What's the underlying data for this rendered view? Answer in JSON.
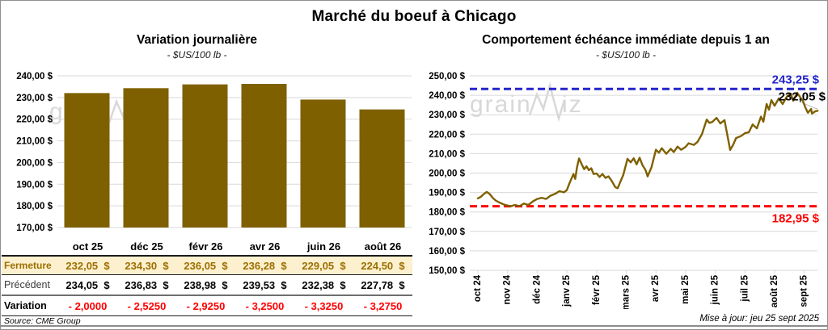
{
  "page": {
    "title": "Marché du boeuf à Chicago",
    "source": "Source: CME Group",
    "updated": "Mise à jour: jeu 25 sept 2025",
    "watermark": {
      "part1": "grain",
      "part2": "iz"
    }
  },
  "colors": {
    "series_gold": "#7F6000",
    "grid": "#D9D9D9",
    "high_blue": "#2424CC",
    "low_red": "#FF0000",
    "last_black": "#000000",
    "fermeture_text": "#9C6F00",
    "fermeture_bg": "#FCF0CE",
    "variation_red": "#FF0000",
    "watermark_gray": "#D8D8D8"
  },
  "chart_data": [
    {
      "type": "bar",
      "title": "Variation journalière",
      "subtitle": "- $US/100 lb -",
      "categories": [
        "oct 25",
        "déc 25",
        "févr 26",
        "avr 26",
        "juin 26",
        "août 26"
      ],
      "values": [
        232.05,
        234.3,
        236.05,
        236.28,
        229.05,
        224.5
      ],
      "ylim": [
        170,
        240
      ],
      "ytick_step": 10,
      "ytick_labels": [
        "240,00 $",
        "230,00 $",
        "220,00 $",
        "210,00 $",
        "200,00 $",
        "190,00 $",
        "180,00 $",
        "170,00 $"
      ],
      "grid": true,
      "table": {
        "rows": [
          {
            "key": "fermeture",
            "label": "Fermeture",
            "values": [
              "232,05  $",
              "234,30  $",
              "236,05  $",
              "236,28  $",
              "229,05  $",
              "224,50  $"
            ]
          },
          {
            "key": "precedent",
            "label": "Précédent",
            "values": [
              "234,05  $",
              "236,83  $",
              "238,98  $",
              "239,53  $",
              "232,38  $",
              "227,78  $"
            ]
          },
          {
            "key": "variation",
            "label": "Variation",
            "values": [
              "- 2,0000",
              "- 2,5250",
              "- 2,9250",
              "- 3,2500",
              "- 3,3250",
              "- 3,2750"
            ]
          }
        ]
      }
    },
    {
      "type": "line",
      "title": "Comportement échéance immédiate depuis 1 an",
      "subtitle": "- $US/100 lb -",
      "x_tick_labels": [
        "oct 24",
        "nov 24",
        "déc 24",
        "janv 25",
        "févr 25",
        "mars 25",
        "avr 25",
        "mai 25",
        "juin 25",
        "juil 25",
        "août 25",
        "sept 25"
      ],
      "ylim": [
        150,
        250
      ],
      "ytick_step": 10,
      "ytick_labels": [
        "250,00 $",
        "240,00 $",
        "230,00 $",
        "220,00 $",
        "210,00 $",
        "200,00 $",
        "190,00 $",
        "180,00 $",
        "170,00 $",
        "160,00 $",
        "150,00 $"
      ],
      "grid": true,
      "annotations": {
        "high": {
          "value": 243.25,
          "label": "243,25 $"
        },
        "low": {
          "value": 182.95,
          "label": "182,95 $"
        },
        "last": {
          "value": 232.05,
          "label": "232,05 $"
        }
      },
      "series": [
        {
          "name": "échéance immédiate",
          "points": [
            [
              0.0,
              187.0
            ],
            [
              0.1,
              187.8
            ],
            [
              0.2,
              189.2
            ],
            [
              0.3,
              190.3
            ],
            [
              0.4,
              189.2
            ],
            [
              0.5,
              187.3
            ],
            [
              0.6,
              185.9
            ],
            [
              0.75,
              184.7
            ],
            [
              0.9,
              183.7
            ],
            [
              1.0,
              183.3
            ],
            [
              1.1,
              182.9
            ],
            [
              1.25,
              183.6
            ],
            [
              1.4,
              183.0
            ],
            [
              1.55,
              184.3
            ],
            [
              1.7,
              183.6
            ],
            [
              1.85,
              185.4
            ],
            [
              2.0,
              186.7
            ],
            [
              2.15,
              187.3
            ],
            [
              2.3,
              186.7
            ],
            [
              2.45,
              188.4
            ],
            [
              2.6,
              189.3
            ],
            [
              2.75,
              190.7
            ],
            [
              2.9,
              190.1
            ],
            [
              3.0,
              191.3
            ],
            [
              3.08,
              194.5
            ],
            [
              3.15,
              197.0
            ],
            [
              3.22,
              199.5
            ],
            [
              3.28,
              197.0
            ],
            [
              3.34,
              203.0
            ],
            [
              3.41,
              207.5
            ],
            [
              3.5,
              204.5
            ],
            [
              3.58,
              202.0
            ],
            [
              3.66,
              203.5
            ],
            [
              3.74,
              201.5
            ],
            [
              3.82,
              202.5
            ],
            [
              3.9,
              199.5
            ],
            [
              4.0,
              199.8
            ],
            [
              4.1,
              198.0
            ],
            [
              4.2,
              199.5
            ],
            [
              4.3,
              197.5
            ],
            [
              4.4,
              198.3
            ],
            [
              4.5,
              196.2
            ],
            [
              4.63,
              192.8
            ],
            [
              4.71,
              192.2
            ],
            [
              4.8,
              195.5
            ],
            [
              4.9,
              199.0
            ],
            [
              5.04,
              207.3
            ],
            [
              5.15,
              205.5
            ],
            [
              5.25,
              207.6
            ],
            [
              5.35,
              204.5
            ],
            [
              5.45,
              207.9
            ],
            [
              5.55,
              204.0
            ],
            [
              5.65,
              201.5
            ],
            [
              5.72,
              198.3
            ],
            [
              5.85,
              203.0
            ],
            [
              6.0,
              212.0
            ],
            [
              6.1,
              210.5
            ],
            [
              6.2,
              212.8
            ],
            [
              6.35,
              209.9
            ],
            [
              6.5,
              212.5
            ],
            [
              6.6,
              210.8
            ],
            [
              6.73,
              213.6
            ],
            [
              6.85,
              212.0
            ],
            [
              7.0,
              213.5
            ],
            [
              7.1,
              215.3
            ],
            [
              7.28,
              214.5
            ],
            [
              7.4,
              216.0
            ],
            [
              7.55,
              220.0
            ],
            [
              7.71,
              227.5
            ],
            [
              7.8,
              225.8
            ],
            [
              7.9,
              226.3
            ],
            [
              8.04,
              228.4
            ],
            [
              8.17,
              225.5
            ],
            [
              8.31,
              227.2
            ],
            [
              8.4,
              220.0
            ],
            [
              8.5,
              211.9
            ],
            [
              8.6,
              214.5
            ],
            [
              8.7,
              218.0
            ],
            [
              8.86,
              219.0
            ],
            [
              9.0,
              220.5
            ],
            [
              9.13,
              221.0
            ],
            [
              9.26,
              225.0
            ],
            [
              9.4,
              223.0
            ],
            [
              9.54,
              229.0
            ],
            [
              9.62,
              226.4
            ],
            [
              9.73,
              235.5
            ],
            [
              9.81,
              232.6
            ],
            [
              9.89,
              237.5
            ],
            [
              10.0,
              234.6
            ],
            [
              10.14,
              238.4
            ],
            [
              10.27,
              235.5
            ],
            [
              10.41,
              239.2
            ],
            [
              10.54,
              240.9
            ],
            [
              10.63,
              237.2
            ],
            [
              10.76,
              241.3
            ],
            [
              10.85,
              239.2
            ],
            [
              10.95,
              237.2
            ],
            [
              11.03,
              233.9
            ],
            [
              11.12,
              231.0
            ],
            [
              11.23,
              233.0
            ],
            [
              11.26,
              230.6
            ],
            [
              11.37,
              231.8
            ],
            [
              11.45,
              232.05
            ]
          ]
        }
      ]
    }
  ]
}
